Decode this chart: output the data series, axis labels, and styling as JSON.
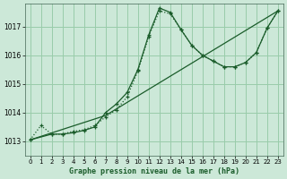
{
  "bg_color": "#cce8d8",
  "grid_color": "#99ccaa",
  "line_color": "#1a5c2a",
  "title": "Graphe pression niveau de la mer (hPa)",
  "xlim": [
    -0.5,
    23.5
  ],
  "ylim": [
    1012.5,
    1017.8
  ],
  "yticks": [
    1013,
    1014,
    1015,
    1016,
    1017
  ],
  "xticks": [
    0,
    1,
    2,
    3,
    4,
    5,
    6,
    7,
    8,
    9,
    10,
    11,
    12,
    13,
    14,
    15,
    16,
    17,
    18,
    19,
    20,
    21,
    22,
    23
  ],
  "line1_x": [
    0,
    1,
    2,
    3,
    4,
    5,
    6,
    7,
    8,
    9,
    10,
    11,
    12,
    13,
    14,
    15,
    16,
    17,
    18,
    19,
    20,
    21,
    22,
    23
  ],
  "line1_y": [
    1013.05,
    1013.55,
    1013.25,
    1013.25,
    1013.35,
    1013.4,
    1013.55,
    1013.85,
    1014.1,
    1014.55,
    1015.45,
    1016.65,
    1017.55,
    1017.45,
    1016.9,
    1016.35,
    1016.0,
    1015.8,
    1015.6,
    1015.6,
    1015.75,
    1016.1,
    1016.95,
    1017.55
  ],
  "line2_x": [
    0,
    2,
    3,
    4,
    5,
    6,
    7,
    8,
    9,
    10,
    11,
    12,
    13,
    14,
    15,
    16,
    17,
    18,
    19,
    20,
    21,
    22,
    23
  ],
  "line2_y": [
    1013.05,
    1013.25,
    1013.25,
    1013.3,
    1013.38,
    1013.5,
    1014.0,
    1014.3,
    1014.7,
    1015.5,
    1016.7,
    1017.65,
    1017.5,
    1016.9,
    1016.35,
    1016.0,
    1015.8,
    1015.6,
    1015.6,
    1015.75,
    1016.1,
    1016.95,
    1017.55
  ],
  "line3_x": [
    0,
    7,
    23
  ],
  "line3_y": [
    1013.05,
    1013.9,
    1017.55
  ]
}
